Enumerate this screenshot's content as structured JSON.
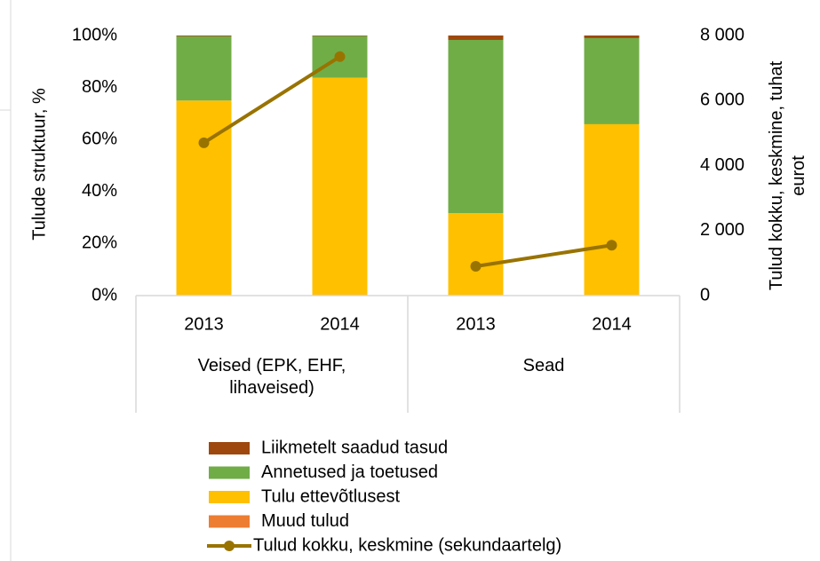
{
  "chart_data": {
    "type": "stacked-bar-line",
    "ylabel": "Tulude struktuur, %",
    "y2label": "Tulud kokku, keskmine, tuhat eurot",
    "categories": [
      "2013",
      "2014",
      "2013",
      "2014"
    ],
    "groups": [
      {
        "name": "Veised (EPK, EHF, lihaveised)",
        "span": 2
      },
      {
        "name": "Sead",
        "span": 2
      }
    ],
    "series": [
      {
        "name": "Liikmetelt saadud tasud",
        "color": "#9e480e",
        "values": [
          0.3,
          0.2,
          1.7,
          1.0
        ]
      },
      {
        "name": "Annetused ja toetused",
        "color": "#70ad47",
        "values": [
          24.7,
          16,
          66.6,
          33.1
        ]
      },
      {
        "name": "Tulu ettevõtlusest",
        "color": "#ffc000",
        "values": [
          75,
          83.5,
          31.7,
          65.9
        ]
      },
      {
        "name": "Muud tulud",
        "color": "#ed7d31",
        "values": [
          0,
          0.3,
          0,
          0
        ]
      },
      {
        "name": "Tulud kokku, keskmine (sekundaartelg)",
        "color": "#997300",
        "axis": "y2",
        "kind": "line",
        "values": [
          4700,
          7350,
          900,
          1550
        ]
      }
    ],
    "ylim": [
      0,
      100
    ],
    "yticks": [
      {
        "value": 0,
        "label": "0%"
      },
      {
        "value": 20,
        "label": "20%"
      },
      {
        "value": 40,
        "label": "40%"
      },
      {
        "value": 60,
        "label": "60%"
      },
      {
        "value": 80,
        "label": "80%"
      },
      {
        "value": 100,
        "label": "100%"
      }
    ],
    "y2lim": [
      0,
      8000
    ],
    "y2ticks": [
      0,
      {
        "value": 2000,
        "label": "2 000"
      },
      {
        "value": 4000,
        "label": "4 000"
      },
      {
        "value": 6000,
        "label": "6 000"
      },
      {
        "value": 8000,
        "label": "8 000"
      }
    ],
    "grid": false,
    "legend": "bottom"
  }
}
